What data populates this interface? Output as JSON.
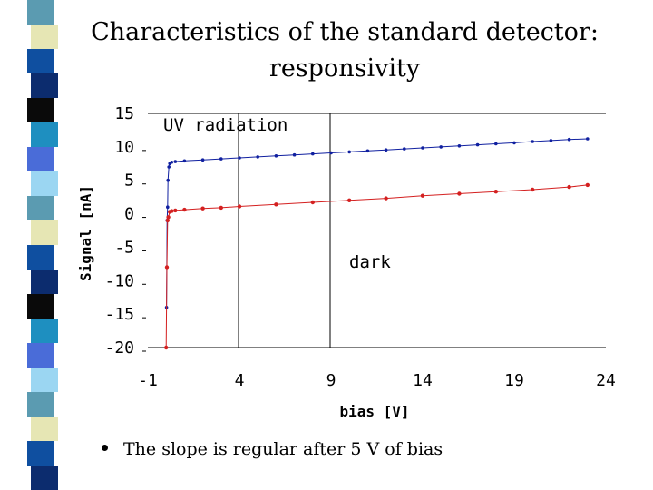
{
  "slide": {
    "title_line1": "Characteristics of the standard detector:",
    "title_line2": "responsivity",
    "bullet": "The slope is regular after 5 V of bias",
    "stripe_colors": [
      "#5b9bb1",
      "#0c2c6e",
      "#4a6cd8",
      "#e6e6b4",
      "#0a0a0a",
      "#9bd6f2",
      "#0f4fa0",
      "#1e8fc0"
    ]
  },
  "chart_data": {
    "type": "line",
    "title": "",
    "xlabel": "bias [V]",
    "ylabel": "Signal [nA]",
    "xlim": [
      -1,
      24
    ],
    "ylim": [
      -20,
      15
    ],
    "x_ticks": [
      "-1",
      "4",
      "9",
      "14",
      "19",
      "24"
    ],
    "y_ticks": [
      "15",
      "10",
      "5",
      "0",
      "-5",
      "-10",
      "-15",
      "-20"
    ],
    "grid": false,
    "annotations": [
      "UV radiation",
      "dark"
    ],
    "series": [
      {
        "color": "#1020a0",
        "points": [
          [
            0.02,
            -14
          ],
          [
            0.05,
            -1
          ],
          [
            0.08,
            1
          ],
          [
            0.1,
            5
          ],
          [
            0.15,
            7
          ],
          [
            0.2,
            7.5
          ],
          [
            0.3,
            7.7
          ],
          [
            0.5,
            7.8
          ],
          [
            1,
            7.9
          ],
          [
            2,
            8.05
          ],
          [
            3,
            8.2
          ],
          [
            4,
            8.35
          ],
          [
            5,
            8.5
          ],
          [
            6,
            8.65
          ],
          [
            7,
            8.8
          ],
          [
            8,
            8.95
          ],
          [
            9,
            9.1
          ],
          [
            10,
            9.25
          ],
          [
            11,
            9.4
          ],
          [
            12,
            9.55
          ],
          [
            13,
            9.7
          ],
          [
            14,
            9.85
          ],
          [
            15,
            10.0
          ],
          [
            16,
            10.15
          ],
          [
            17,
            10.3
          ],
          [
            18,
            10.45
          ],
          [
            19,
            10.6
          ],
          [
            20,
            10.8
          ],
          [
            21,
            10.95
          ],
          [
            22,
            11.1
          ],
          [
            23,
            11.2
          ]
        ]
      },
      {
        "color": "#d42020",
        "points": [
          [
            0.0,
            -20
          ],
          [
            0.04,
            -8
          ],
          [
            0.08,
            -1
          ],
          [
            0.12,
            -0.5
          ],
          [
            0.2,
            0.3
          ],
          [
            0.3,
            0.4
          ],
          [
            0.5,
            0.5
          ],
          [
            1,
            0.6
          ],
          [
            2,
            0.8
          ],
          [
            3,
            0.9
          ],
          [
            4,
            1.1
          ],
          [
            6,
            1.4
          ],
          [
            8,
            1.7
          ],
          [
            10,
            2.0
          ],
          [
            12,
            2.3
          ],
          [
            14,
            2.7
          ],
          [
            16,
            3.0
          ],
          [
            18,
            3.3
          ],
          [
            20,
            3.6
          ],
          [
            22,
            4.0
          ],
          [
            23,
            4.3
          ]
        ]
      }
    ]
  }
}
